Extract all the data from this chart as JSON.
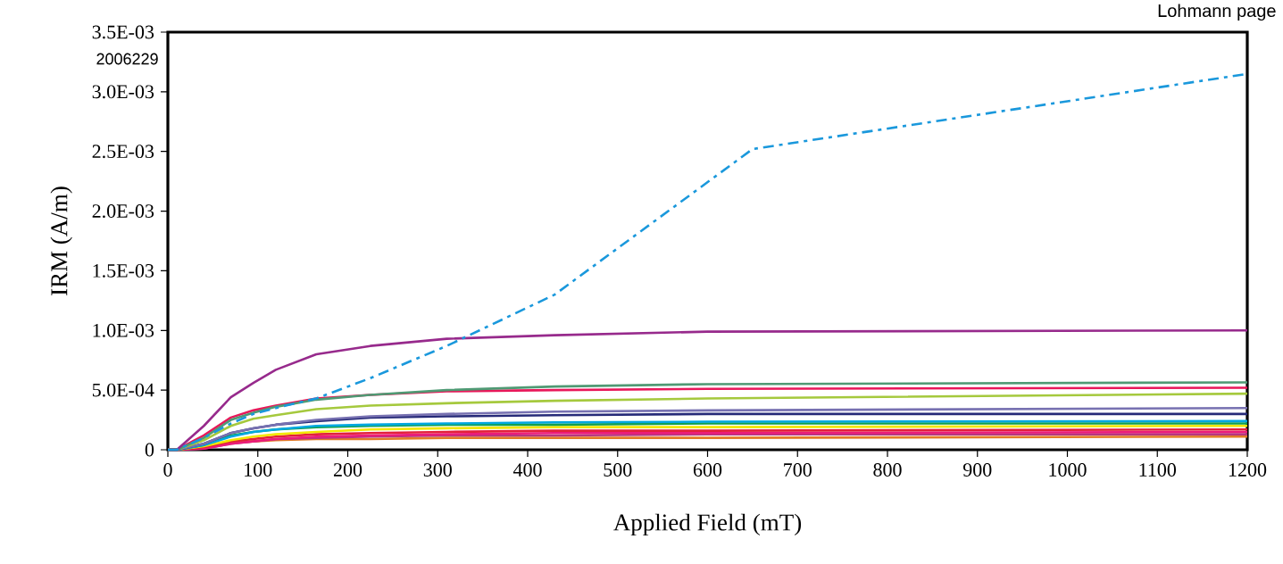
{
  "chart_data": {
    "type": "line",
    "xlabel": "Applied Field (mT)",
    "ylabel": "IRM (A/m)",
    "annotations": [
      "2006229",
      "Lohmann page"
    ],
    "x": [
      0,
      10,
      40,
      70,
      95,
      120,
      165,
      225,
      310,
      430,
      600,
      1200
    ],
    "xlim": [
      0,
      1200
    ],
    "xticks": [
      0,
      100,
      200,
      300,
      400,
      500,
      600,
      700,
      800,
      900,
      1000,
      1100,
      1200
    ],
    "ylim": [
      0,
      0.0035
    ],
    "yticks": [
      0,
      {
        "value": 0.0005,
        "label": "5.0E-04"
      },
      {
        "value": 0.001,
        "label": "1.0E-03"
      },
      {
        "value": 0.0015,
        "label": "1.5E-03"
      },
      {
        "value": 0.002,
        "label": "2.0E-03"
      },
      {
        "value": 0.0025,
        "label": "2.5E-03"
      },
      {
        "value": 0.003,
        "label": "3.0E-03"
      },
      {
        "value": 0.0035,
        "label": "3.5E-03"
      }
    ],
    "grid": false,
    "marker": "none",
    "series": [
      {
        "color": "#e37b27",
        "values": [
          0,
          0,
          2e-05,
          6e-05,
          7e-05,
          8e-05,
          9e-05,
          9e-05,
          0.0001,
          0.0001,
          0.0001,
          0.00011
        ]
      },
      {
        "color": "#b5367f",
        "values": [
          0,
          0,
          1e-05,
          5e-05,
          7e-05,
          9e-05,
          0.0001,
          0.00011,
          0.00012,
          0.00012,
          0.00013,
          0.00013
        ]
      },
      {
        "color": "#ec1c7a",
        "values": [
          0,
          0,
          1e-05,
          5e-05,
          7e-05,
          9e-05,
          0.00011,
          0.00012,
          0.00013,
          0.00014,
          0.00014,
          0.00015
        ]
      },
      {
        "color": "#e3203a",
        "values": [
          0,
          0,
          2e-05,
          7e-05,
          9e-05,
          0.00011,
          0.00013,
          0.00014,
          0.00015,
          0.00016,
          0.00016,
          0.00017
        ]
      },
      {
        "color": "#f2e600",
        "values": [
          0,
          0,
          3e-05,
          8e-05,
          0.00011,
          0.00013,
          0.00015,
          0.00017,
          0.00018,
          0.00019,
          0.00019,
          0.0002
        ]
      },
      {
        "color": "#12a04a",
        "values": [
          0,
          0,
          4e-05,
          0.00012,
          0.00015,
          0.00017,
          0.00019,
          0.0002,
          0.00021,
          0.00021,
          0.00022,
          0.00022
        ]
      },
      {
        "color": "#00a8e1",
        "values": [
          0,
          0,
          4e-05,
          0.00011,
          0.00015,
          0.00017,
          0.0002,
          0.00021,
          0.00022,
          0.00023,
          0.000235,
          0.00024
        ]
      },
      {
        "color": "#262a78",
        "values": [
          0,
          0,
          5e-05,
          0.00014,
          0.00018,
          0.00021,
          0.00024,
          0.00027,
          0.00028,
          0.00029,
          0.0003,
          0.0003
        ]
      },
      {
        "color": "#7771b1",
        "values": [
          0,
          0,
          5e-05,
          0.00014,
          0.00018,
          0.00021,
          0.00025,
          0.00028,
          0.0003,
          0.00032,
          0.00033,
          0.00035
        ]
      },
      {
        "color": "#a5c93d",
        "values": [
          0,
          0,
          8e-05,
          0.0002,
          0.00026,
          0.00029,
          0.00034,
          0.00037,
          0.00039,
          0.00041,
          0.00043,
          0.00047
        ]
      },
      {
        "color": "#e8185a",
        "values": [
          0,
          0,
          0.00012,
          0.00027,
          0.00033,
          0.00037,
          0.00043,
          0.00046,
          0.00049,
          0.0005,
          0.00051,
          0.00052
        ]
      },
      {
        "color": "#4f9a74",
        "values": [
          0,
          0,
          0.0001,
          0.00025,
          0.00031,
          0.00036,
          0.00042,
          0.00046,
          0.0005,
          0.00053,
          0.00055,
          0.000565
        ]
      },
      {
        "color": "#972a8c",
        "values": [
          0,
          0,
          0.0002,
          0.00044,
          0.00056,
          0.00067,
          0.0008,
          0.00087,
          0.00093,
          0.00096,
          0.00099,
          0.001
        ]
      },
      {
        "color": "#1a98dc",
        "line_style": "dashed",
        "x": [
          0,
          10,
          40,
          70,
          95,
          120,
          165,
          225,
          310,
          430,
          650,
          1200
        ],
        "values": [
          0,
          0,
          0.0001,
          0.00022,
          0.0003,
          0.00035,
          0.00043,
          0.0006,
          0.00087,
          0.0013,
          0.00252,
          0.00315
        ]
      }
    ]
  }
}
